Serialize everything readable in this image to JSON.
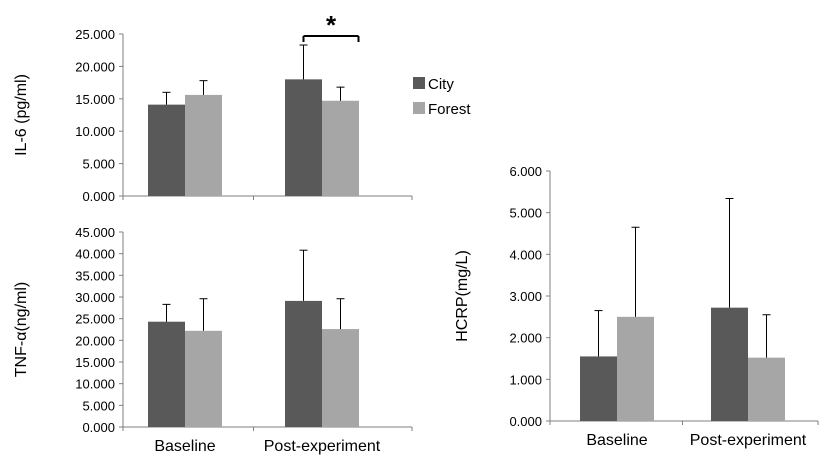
{
  "colors": {
    "city": "#595959",
    "forest": "#a6a6a6",
    "axis": "#7f7f7f",
    "error": "#000000"
  },
  "legend": {
    "placement": "right",
    "entries": [
      "City",
      "Forest"
    ]
  },
  "chart_data": [
    {
      "id": "il6",
      "type": "bar",
      "title": "",
      "ylabel": "IL-6 (pg/ml)",
      "xlabel": "",
      "categories": [
        "Baseline",
        "Post-experiment"
      ],
      "ylim": [
        0,
        25
      ],
      "yticks": [
        "0.000",
        "5.000",
        "10.000",
        "15.000",
        "20.000",
        "25.000"
      ],
      "show_category_labels": false,
      "grid": false,
      "series": [
        {
          "name": "City",
          "values": [
            14.1,
            18.0
          ],
          "errors": [
            1.9,
            5.3
          ]
        },
        {
          "name": "Forest",
          "values": [
            15.6,
            14.7
          ],
          "errors": [
            2.2,
            2.1
          ]
        }
      ],
      "annotation": {
        "text": "*",
        "category": "Post-experiment"
      }
    },
    {
      "id": "tnf",
      "type": "bar",
      "title": "",
      "ylabel": "TNF-α(ng/ml)",
      "xlabel": "",
      "categories": [
        "Baseline",
        "Post-experiment"
      ],
      "ylim": [
        0,
        45
      ],
      "yticks": [
        "0.000",
        "5.000",
        "10.000",
        "15.000",
        "20.000",
        "25.000",
        "30.000",
        "35.000",
        "40.000",
        "45.000"
      ],
      "show_category_labels": true,
      "grid": false,
      "series": [
        {
          "name": "City",
          "values": [
            24.3,
            29.1
          ],
          "errors": [
            4.0,
            11.7
          ]
        },
        {
          "name": "Forest",
          "values": [
            22.2,
            22.6
          ],
          "errors": [
            7.4,
            7.0
          ]
        }
      ]
    },
    {
      "id": "hcrp",
      "type": "bar",
      "title": "",
      "ylabel": "HCRP(mg/L)",
      "xlabel": "",
      "categories": [
        "Baseline",
        "Post-experiment"
      ],
      "ylim": [
        0,
        6
      ],
      "yticks": [
        "0.000",
        "1.000",
        "2.000",
        "3.000",
        "4.000",
        "5.000",
        "6.000"
      ],
      "show_category_labels": true,
      "grid": false,
      "series": [
        {
          "name": "City",
          "values": [
            1.55,
            2.72
          ],
          "errors": [
            1.1,
            2.62
          ]
        },
        {
          "name": "Forest",
          "values": [
            2.5,
            1.52
          ],
          "errors": [
            2.15,
            1.03
          ]
        }
      ]
    }
  ]
}
